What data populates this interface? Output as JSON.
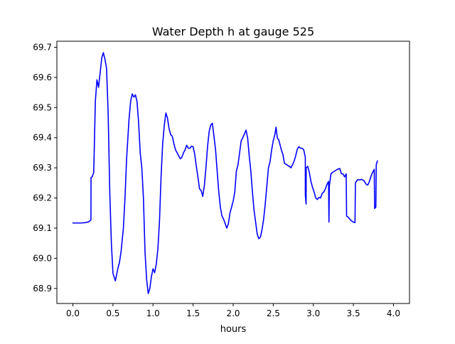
{
  "chart_data": {
    "type": "line",
    "title": "Water Depth h at gauge 525",
    "xlabel": "hours",
    "ylabel": "",
    "xlim": [
      -0.2,
      4.2
    ],
    "ylim": [
      68.85,
      69.72
    ],
    "xticks": [
      0.0,
      0.5,
      1.0,
      1.5,
      2.0,
      2.5,
      3.0,
      3.5,
      4.0
    ],
    "xtick_labels": [
      "0.0",
      "0.5",
      "1.0",
      "1.5",
      "2.0",
      "2.5",
      "3.0",
      "3.5",
      "4.0"
    ],
    "yticks": [
      68.9,
      69.0,
      69.1,
      69.2,
      69.3,
      69.4,
      69.5,
      69.6,
      69.7
    ],
    "ytick_labels": [
      "68.9",
      "69.0",
      "69.1",
      "69.2",
      "69.3",
      "69.4",
      "69.5",
      "69.6",
      "69.7"
    ],
    "grid": false,
    "series": [
      {
        "color": "#0000ff",
        "points": [
          [
            0.0,
            69.117
          ],
          [
            0.05,
            69.117
          ],
          [
            0.1,
            69.117
          ],
          [
            0.15,
            69.118
          ],
          [
            0.2,
            69.121
          ],
          [
            0.225,
            69.128
          ],
          [
            0.226,
            69.268
          ],
          [
            0.24,
            69.27
          ],
          [
            0.26,
            69.285
          ],
          [
            0.28,
            69.52
          ],
          [
            0.3,
            69.592
          ],
          [
            0.32,
            69.567
          ],
          [
            0.34,
            69.615
          ],
          [
            0.36,
            69.665
          ],
          [
            0.38,
            69.682
          ],
          [
            0.4,
            69.66
          ],
          [
            0.42,
            69.63
          ],
          [
            0.44,
            69.48
          ],
          [
            0.46,
            69.22
          ],
          [
            0.48,
            69.05
          ],
          [
            0.5,
            68.95
          ],
          [
            0.53,
            68.925
          ],
          [
            0.56,
            68.965
          ],
          [
            0.58,
            68.985
          ],
          [
            0.6,
            69.02
          ],
          [
            0.63,
            69.1
          ],
          [
            0.65,
            69.2
          ],
          [
            0.67,
            69.33
          ],
          [
            0.7,
            69.46
          ],
          [
            0.72,
            69.52
          ],
          [
            0.74,
            69.545
          ],
          [
            0.76,
            69.535
          ],
          [
            0.78,
            69.542
          ],
          [
            0.8,
            69.52
          ],
          [
            0.82,
            69.45
          ],
          [
            0.84,
            69.35
          ],
          [
            0.86,
            69.3
          ],
          [
            0.88,
            69.2
          ],
          [
            0.9,
            69.02
          ],
          [
            0.92,
            68.93
          ],
          [
            0.94,
            68.883
          ],
          [
            0.96,
            68.9
          ],
          [
            0.98,
            68.94
          ],
          [
            1.0,
            68.965
          ],
          [
            1.02,
            68.952
          ],
          [
            1.04,
            68.98
          ],
          [
            1.06,
            69.03
          ],
          [
            1.08,
            69.12
          ],
          [
            1.1,
            69.27
          ],
          [
            1.12,
            69.38
          ],
          [
            1.14,
            69.44
          ],
          [
            1.16,
            69.482
          ],
          [
            1.18,
            69.465
          ],
          [
            1.2,
            69.43
          ],
          [
            1.22,
            69.41
          ],
          [
            1.24,
            69.405
          ],
          [
            1.26,
            69.38
          ],
          [
            1.28,
            69.36
          ],
          [
            1.3,
            69.35
          ],
          [
            1.32,
            69.34
          ],
          [
            1.34,
            69.33
          ],
          [
            1.36,
            69.335
          ],
          [
            1.38,
            69.35
          ],
          [
            1.4,
            69.36
          ],
          [
            1.42,
            69.375
          ],
          [
            1.44,
            69.365
          ],
          [
            1.46,
            69.365
          ],
          [
            1.48,
            69.372
          ],
          [
            1.5,
            69.37
          ],
          [
            1.52,
            69.345
          ],
          [
            1.54,
            69.305
          ],
          [
            1.56,
            69.27
          ],
          [
            1.58,
            69.23
          ],
          [
            1.6,
            69.225
          ],
          [
            1.62,
            69.205
          ],
          [
            1.64,
            69.24
          ],
          [
            1.66,
            69.3
          ],
          [
            1.68,
            69.37
          ],
          [
            1.7,
            69.42
          ],
          [
            1.72,
            69.442
          ],
          [
            1.74,
            69.448
          ],
          [
            1.76,
            69.405
          ],
          [
            1.78,
            69.36
          ],
          [
            1.8,
            69.29
          ],
          [
            1.82,
            69.22
          ],
          [
            1.84,
            69.17
          ],
          [
            1.86,
            69.14
          ],
          [
            1.88,
            69.13
          ],
          [
            1.9,
            69.115
          ],
          [
            1.92,
            69.1
          ],
          [
            1.94,
            69.115
          ],
          [
            1.96,
            69.15
          ],
          [
            1.98,
            69.17
          ],
          [
            2.0,
            69.19
          ],
          [
            2.02,
            69.22
          ],
          [
            2.04,
            69.29
          ],
          [
            2.06,
            69.31
          ],
          [
            2.08,
            69.35
          ],
          [
            2.1,
            69.39
          ],
          [
            2.12,
            69.4
          ],
          [
            2.14,
            69.412
          ],
          [
            2.16,
            69.425
          ],
          [
            2.18,
            69.4
          ],
          [
            2.2,
            69.34
          ],
          [
            2.22,
            69.29
          ],
          [
            2.24,
            69.22
          ],
          [
            2.26,
            69.16
          ],
          [
            2.28,
            69.12
          ],
          [
            2.3,
            69.08
          ],
          [
            2.32,
            69.065
          ],
          [
            2.34,
            69.07
          ],
          [
            2.36,
            69.095
          ],
          [
            2.38,
            69.13
          ],
          [
            2.4,
            69.18
          ],
          [
            2.42,
            69.24
          ],
          [
            2.44,
            69.3
          ],
          [
            2.46,
            69.32
          ],
          [
            2.48,
            69.36
          ],
          [
            2.5,
            69.39
          ],
          [
            2.52,
            69.41
          ],
          [
            2.535,
            69.435
          ],
          [
            2.55,
            69.4
          ],
          [
            2.57,
            69.392
          ],
          [
            2.6,
            69.36
          ],
          [
            2.62,
            69.345
          ],
          [
            2.64,
            69.315
          ],
          [
            2.67,
            69.31
          ],
          [
            2.7,
            69.305
          ],
          [
            2.72,
            69.3
          ],
          [
            2.74,
            69.31
          ],
          [
            2.76,
            69.322
          ],
          [
            2.78,
            69.34
          ],
          [
            2.8,
            69.362
          ],
          [
            2.82,
            69.37
          ],
          [
            2.84,
            69.365
          ],
          [
            2.86,
            69.365
          ],
          [
            2.88,
            69.36
          ],
          [
            2.9,
            69.335
          ],
          [
            2.9001,
            69.21
          ],
          [
            2.91,
            69.18
          ],
          [
            2.911,
            69.3
          ],
          [
            2.93,
            69.305
          ],
          [
            2.95,
            69.285
          ],
          [
            2.97,
            69.255
          ],
          [
            2.99,
            69.235
          ],
          [
            3.01,
            69.22
          ],
          [
            3.03,
            69.2
          ],
          [
            3.05,
            69.195
          ],
          [
            3.07,
            69.202
          ],
          [
            3.09,
            69.2
          ],
          [
            3.11,
            69.215
          ],
          [
            3.13,
            69.22
          ],
          [
            3.15,
            69.23
          ],
          [
            3.17,
            69.245
          ],
          [
            3.19,
            69.255
          ],
          [
            3.195,
            69.12
          ],
          [
            3.2,
            69.24
          ],
          [
            3.22,
            69.28
          ],
          [
            3.24,
            69.285
          ],
          [
            3.27,
            69.29
          ],
          [
            3.3,
            69.295
          ],
          [
            3.33,
            69.298
          ],
          [
            3.35,
            69.28
          ],
          [
            3.37,
            69.28
          ],
          [
            3.39,
            69.27
          ],
          [
            3.41,
            69.28
          ],
          [
            3.415,
            69.14
          ],
          [
            3.44,
            69.135
          ],
          [
            3.47,
            69.125
          ],
          [
            3.5,
            69.12
          ],
          [
            3.52,
            69.118
          ],
          [
            3.525,
            69.25
          ],
          [
            3.55,
            69.26
          ],
          [
            3.58,
            69.26
          ],
          [
            3.6,
            69.262
          ],
          [
            3.63,
            69.258
          ],
          [
            3.66,
            69.245
          ],
          [
            3.68,
            69.243
          ],
          [
            3.7,
            69.255
          ],
          [
            3.72,
            69.272
          ],
          [
            3.74,
            69.285
          ],
          [
            3.76,
            69.295
          ],
          [
            3.765,
            69.165
          ],
          [
            3.78,
            69.17
          ],
          [
            3.785,
            69.31
          ],
          [
            3.8,
            69.323
          ]
        ]
      }
    ]
  }
}
